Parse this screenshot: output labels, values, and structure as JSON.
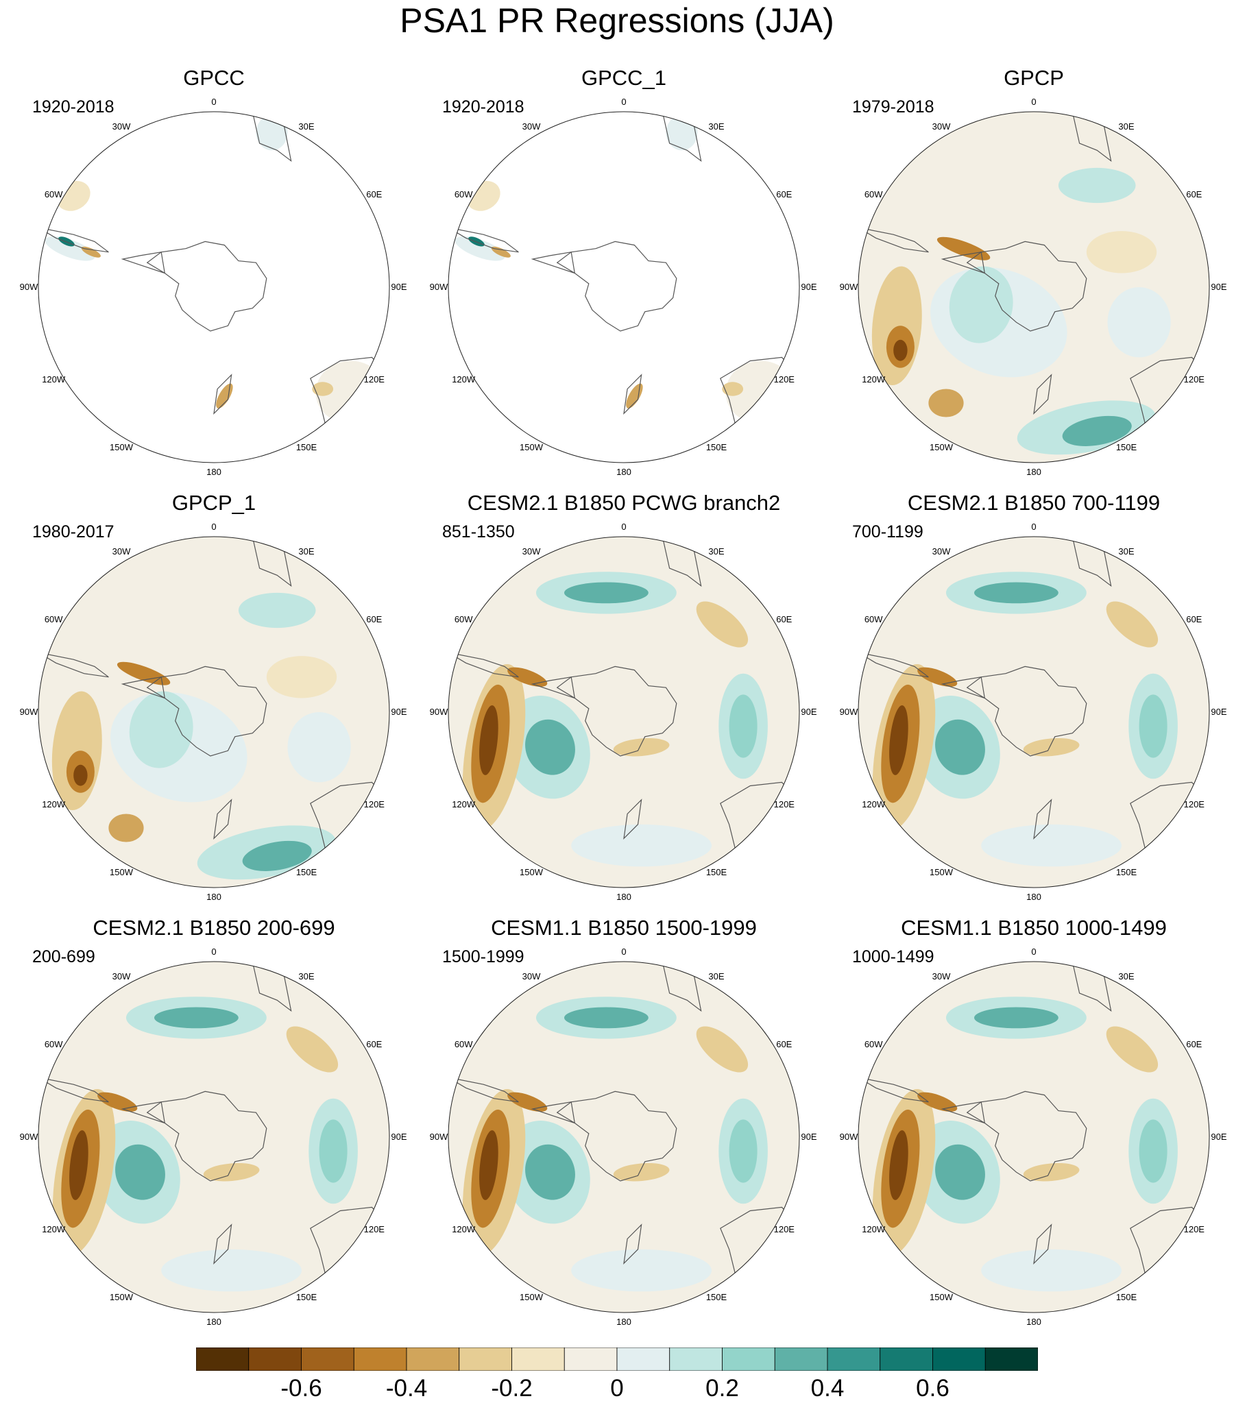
{
  "figure": {
    "title": "PSA1 PR Regressions (JJA)"
  },
  "panels": [
    {
      "title": "GPCC",
      "period": "1920-2018",
      "pattern": "gpcc"
    },
    {
      "title": "GPCC_1",
      "period": "1920-2018",
      "pattern": "gpcc"
    },
    {
      "title": "GPCP",
      "period": "1979-2018",
      "pattern": "gpcp"
    },
    {
      "title": "GPCP_1",
      "period": "1980-2017",
      "pattern": "gpcp"
    },
    {
      "title": "CESM2.1 B1850 PCWG branch2",
      "period": "851-1350",
      "pattern": "model"
    },
    {
      "title": "CESM2.1 B1850 700-1199",
      "period": "700-1199",
      "pattern": "model"
    },
    {
      "title": "CESM2.1 B1850 200-699",
      "period": "200-699",
      "pattern": "model"
    },
    {
      "title": "CESM1.1 B1850 1500-1999",
      "period": "1500-1999",
      "pattern": "model"
    },
    {
      "title": "CESM1.1 B1850 1000-1499",
      "period": "1000-1499",
      "pattern": "model"
    }
  ],
  "longitude_labels": [
    "0",
    "30E",
    "60E",
    "90E",
    "120E",
    "150E",
    "180",
    "150W",
    "120W",
    "90W",
    "60W",
    "30W"
  ],
  "colorbar": {
    "colors": [
      "#543005",
      "#7f470e",
      "#a0621c",
      "#bf812d",
      "#d1a55b",
      "#e6cd94",
      "#f2e5c3",
      "#f3efe4",
      "#e3eff0",
      "#c0e6e1",
      "#93d4ca",
      "#5fb1a7",
      "#35978f",
      "#157b72",
      "#01665e",
      "#003c30"
    ],
    "tick_labels": [
      "-0.6",
      "-0.4",
      "-0.2",
      "0",
      "0.2",
      "0.4",
      "0.6"
    ],
    "tick_values": [
      -0.6,
      -0.4,
      -0.2,
      0,
      0.2,
      0.4,
      0.6
    ],
    "range": [
      -0.8,
      0.8
    ]
  }
}
